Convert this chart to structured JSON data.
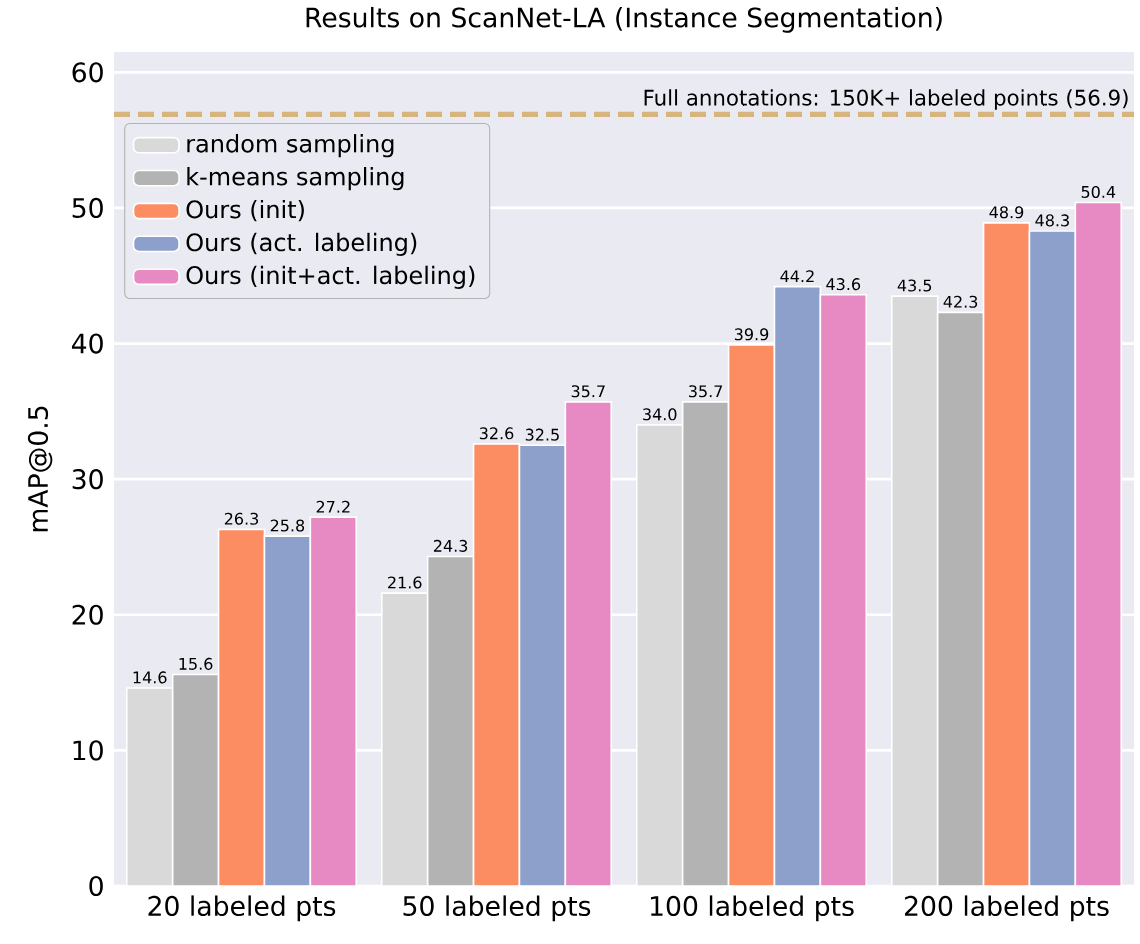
{
  "chart_data": {
    "type": "bar",
    "title": "Results on ScanNet-LA (Instance Segmentation)",
    "ylabel": "mAP@0.5",
    "categories": [
      "20 labeled pts",
      "50 labeled pts",
      "100 labeled pts",
      "200 labeled pts"
    ],
    "series": [
      {
        "name": "random sampling",
        "color": "#d9d9d9",
        "values": [
          14.6,
          21.6,
          34.0,
          43.5
        ],
        "value_labels": [
          "14.6",
          "21.6",
          "34.0",
          "43.5"
        ]
      },
      {
        "name": "k-means sampling",
        "color": "#b3b3b3",
        "values": [
          15.6,
          24.3,
          35.7,
          42.3
        ],
        "value_labels": [
          "15.6",
          "24.3",
          "35.7",
          "42.3"
        ]
      },
      {
        "name": "Ours (init)",
        "color": "#fc8d62",
        "values": [
          26.3,
          32.6,
          39.9,
          48.9
        ],
        "value_labels": [
          "26.3",
          "32.6",
          "39.9",
          "48.9"
        ]
      },
      {
        "name": "Ours (act. labeling)",
        "color": "#8da0cb",
        "values": [
          25.8,
          32.5,
          44.2,
          48.3
        ],
        "value_labels": [
          "25.8",
          "32.5",
          "44.2",
          "48.3"
        ]
      },
      {
        "name": "Ours (init+act. labeling)",
        "color": "#e78ac3",
        "values": [
          27.2,
          35.7,
          43.6,
          50.4
        ],
        "value_labels": [
          "27.2",
          "35.7",
          "43.6",
          "50.4"
        ]
      }
    ],
    "ylim": [
      0,
      61.5
    ],
    "yticks": [
      0,
      10,
      20,
      30,
      40,
      50,
      60
    ],
    "grid": "y",
    "legend": "top left",
    "ref_lines": [
      {
        "axis": "y",
        "value": 56.9,
        "label": "Full annotations: 150K+ labeled points (56.9)",
        "color": "#d8b57c",
        "line_style": "dashed"
      }
    ]
  }
}
